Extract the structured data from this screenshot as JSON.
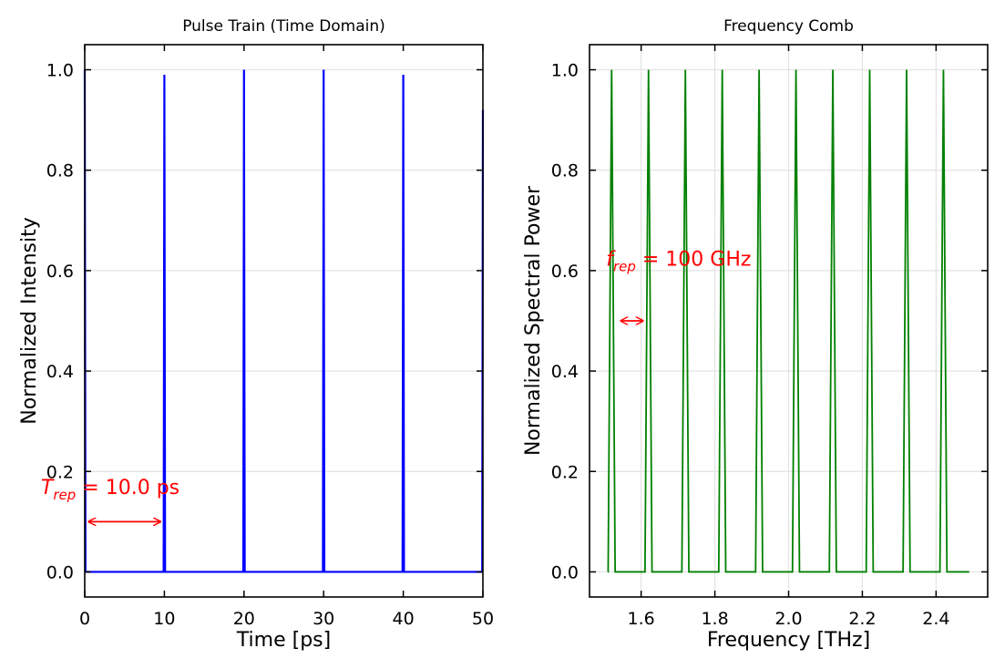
{
  "chart_data": [
    {
      "type": "line",
      "title": "Pulse Train (Time Domain)",
      "xlabel": "Time [ps]",
      "ylabel": "Normalized Intensity",
      "xlim": [
        0,
        50
      ],
      "ylim": [
        -0.05,
        1.05
      ],
      "xticks": [
        "0",
        "10",
        "20",
        "30",
        "40",
        "50"
      ],
      "yticks": [
        "0.0",
        "0.2",
        "0.4",
        "0.6",
        "0.8",
        "1.0"
      ],
      "grid": "horizontal",
      "line_color": "#0000ff",
      "series": [
        {
          "x": [
            0,
            10,
            20,
            30,
            40,
            50
          ],
          "y": [
            1.0,
            0.99,
            1.0,
            1.0,
            0.99,
            0.92
          ]
        }
      ],
      "annotation": {
        "var": "T",
        "sub": "rep",
        "rest": " = 10.0 ps",
        "color": "#ff0000",
        "text_x": -5.5,
        "text_y": 0.155,
        "arrow_from": 0.5,
        "arrow_to": 9.5,
        "arrow_y": 0.1
      }
    },
    {
      "type": "line",
      "title": "Frequency Comb",
      "xlabel": "Frequency [THz]",
      "ylabel": "Normalized Spectral Power",
      "xlim": [
        1.46,
        2.54
      ],
      "ylim": [
        -0.05,
        1.05
      ],
      "xticks": [
        "1.6",
        "1.8",
        "2.0",
        "2.2",
        "2.4"
      ],
      "yticks": [
        "0.0",
        "0.2",
        "0.4",
        "0.6",
        "0.8",
        "1.0"
      ],
      "grid": "both",
      "line_color": "#008000",
      "series": [
        {
          "x": [
            1.52,
            1.62,
            1.72,
            1.82,
            1.92,
            2.02,
            2.12,
            2.22,
            2.32,
            2.42
          ],
          "y": [
            1.0,
            1.0,
            1.0,
            1.0,
            1.0,
            1.0,
            1.0,
            1.0,
            1.0,
            1.0
          ]
        }
      ],
      "x_range": [
        1.51,
        2.49
      ],
      "annotation": {
        "var": "f",
        "sub": "rep",
        "rest": " = 100 GHz",
        "color": "#ff0000",
        "text_x": 1.505,
        "text_y": 0.61,
        "arrow_from": 1.545,
        "arrow_to": 1.605,
        "arrow_y": 0.5
      }
    }
  ]
}
